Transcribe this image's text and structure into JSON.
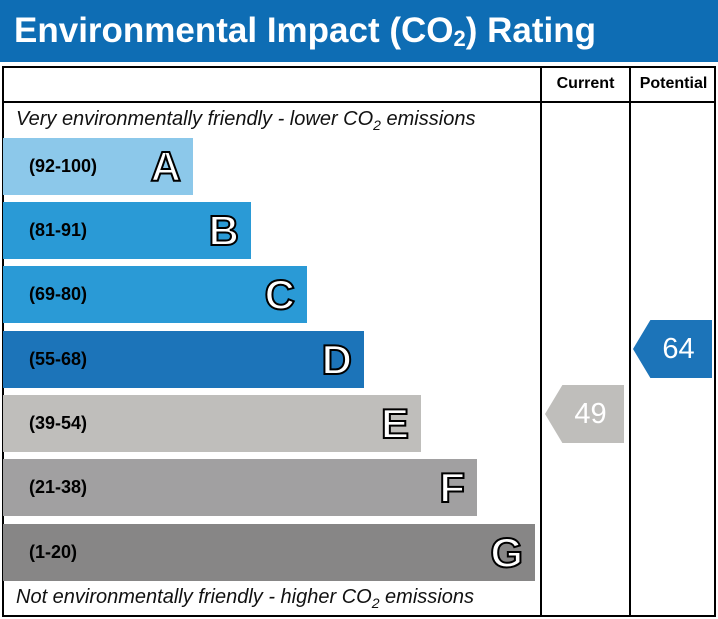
{
  "title": {
    "text": "Environmental Impact (CO",
    "sub": "2",
    "after": ") Rating"
  },
  "columns": {
    "current": "Current",
    "potential": "Potential"
  },
  "top_note": {
    "text": "Very environmentally friendly - lower CO",
    "sub": "2",
    "after": " emissions"
  },
  "bottom_note": {
    "text": "Not environmentally friendly - higher CO",
    "sub": "2",
    "after": " emissions"
  },
  "bands": [
    {
      "range": "(92-100)",
      "letter": "A",
      "color": "#8cc8ea"
    },
    {
      "range": "(81-91)",
      "letter": "B",
      "color": "#2a9ad6"
    },
    {
      "range": "(69-80)",
      "letter": "C",
      "color": "#2a9ad6"
    },
    {
      "range": "(55-68)",
      "letter": "D",
      "color": "#1c74b9"
    },
    {
      "range": "(39-54)",
      "letter": "E",
      "color": "#bfbebb"
    },
    {
      "range": "(21-38)",
      "letter": "F",
      "color": "#a1a0a1"
    },
    {
      "range": "(1-20)",
      "letter": "G",
      "color": "#878686"
    }
  ],
  "current": {
    "value": "49",
    "band": "E",
    "color": "#bfbebb"
  },
  "potential": {
    "value": "64",
    "band": "D",
    "color": "#1c74b9"
  }
}
